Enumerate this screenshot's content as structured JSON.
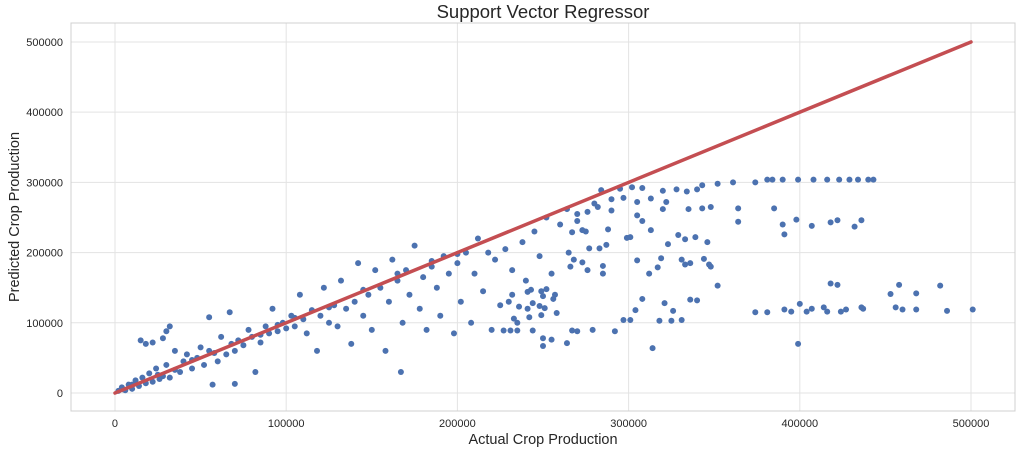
{
  "chart_data": {
    "type": "scatter",
    "title": "Support Vector Regressor",
    "xlabel": "Actual Crop Production",
    "ylabel": "Predicted Crop Production",
    "xlim": [
      -25700,
      525700
    ],
    "ylim": [
      -25600,
      527000
    ],
    "xticks": [
      0,
      100000,
      200000,
      300000,
      400000,
      500000
    ],
    "yticks": [
      0,
      100000,
      200000,
      300000,
      400000,
      500000
    ],
    "xtick_labels": [
      "0",
      "100000",
      "200000",
      "300000",
      "400000",
      "500000"
    ],
    "ytick_labels": [
      "0",
      "100000",
      "200000",
      "300000",
      "400000",
      "500000"
    ],
    "grid": true,
    "colors": {
      "points": "#4c72b0",
      "line": "#c44e52",
      "grid": "#e3e3e3",
      "frame": "#d0d0d0"
    },
    "reference_line": {
      "from": [
        0,
        0
      ],
      "to": [
        500000,
        500000
      ]
    },
    "points": [
      [
        2000,
        3000
      ],
      [
        4000,
        8000
      ],
      [
        6000,
        4000
      ],
      [
        8000,
        12000
      ],
      [
        10000,
        6000
      ],
      [
        12000,
        18000
      ],
      [
        14000,
        10000
      ],
      [
        16000,
        22000
      ],
      [
        18000,
        14000
      ],
      [
        20000,
        28000
      ],
      [
        22000,
        16000
      ],
      [
        24000,
        35000
      ],
      [
        26000,
        20000
      ],
      [
        28000,
        24000
      ],
      [
        30000,
        40000
      ],
      [
        32000,
        22000
      ],
      [
        15000,
        75000
      ],
      [
        18000,
        70000
      ],
      [
        22000,
        72000
      ],
      [
        28000,
        78000
      ],
      [
        30000,
        88000
      ],
      [
        32000,
        95000
      ],
      [
        35000,
        60000
      ],
      [
        38000,
        30000
      ],
      [
        40000,
        45000
      ],
      [
        42000,
        55000
      ],
      [
        45000,
        35000
      ],
      [
        48000,
        50000
      ],
      [
        50000,
        65000
      ],
      [
        52000,
        40000
      ],
      [
        55000,
        60000
      ],
      [
        55000,
        108000
      ],
      [
        57000,
        12000
      ],
      [
        60000,
        45000
      ],
      [
        62000,
        80000
      ],
      [
        65000,
        55000
      ],
      [
        67000,
        115000
      ],
      [
        70000,
        60000
      ],
      [
        70000,
        13000
      ],
      [
        72000,
        75000
      ],
      [
        75000,
        68000
      ],
      [
        78000,
        90000
      ],
      [
        80000,
        80000
      ],
      [
        82000,
        30000
      ],
      [
        85000,
        72000
      ],
      [
        88000,
        95000
      ],
      [
        90000,
        85000
      ],
      [
        92000,
        120000
      ],
      [
        95000,
        88000
      ],
      [
        98000,
        100000
      ],
      [
        100000,
        92000
      ],
      [
        103000,
        110000
      ],
      [
        105000,
        95000
      ],
      [
        108000,
        140000
      ],
      [
        110000,
        105000
      ],
      [
        112000,
        85000
      ],
      [
        115000,
        118000
      ],
      [
        118000,
        60000
      ],
      [
        120000,
        110000
      ],
      [
        122000,
        150000
      ],
      [
        125000,
        100000
      ],
      [
        128000,
        125000
      ],
      [
        130000,
        95000
      ],
      [
        132000,
        160000
      ],
      [
        135000,
        120000
      ],
      [
        138000,
        70000
      ],
      [
        140000,
        130000
      ],
      [
        142000,
        185000
      ],
      [
        145000,
        110000
      ],
      [
        148000,
        140000
      ],
      [
        150000,
        90000
      ],
      [
        152000,
        175000
      ],
      [
        155000,
        150000
      ],
      [
        158000,
        60000
      ],
      [
        160000,
        130000
      ],
      [
        162000,
        190000
      ],
      [
        165000,
        160000
      ],
      [
        167000,
        30000
      ],
      [
        168000,
        100000
      ],
      [
        170000,
        175000
      ],
      [
        172000,
        140000
      ],
      [
        175000,
        210000
      ],
      [
        178000,
        120000
      ],
      [
        180000,
        165000
      ],
      [
        182000,
        90000
      ],
      [
        185000,
        180000
      ],
      [
        188000,
        150000
      ],
      [
        190000,
        110000
      ],
      [
        192000,
        195000
      ],
      [
        195000,
        170000
      ],
      [
        198000,
        85000
      ],
      [
        200000,
        185000
      ],
      [
        202000,
        130000
      ],
      [
        205000,
        200000
      ],
      [
        208000,
        100000
      ],
      [
        210000,
        170000
      ],
      [
        212000,
        220000
      ],
      [
        215000,
        145000
      ],
      [
        218000,
        200000
      ],
      [
        220000,
        90000
      ],
      [
        222000,
        190000
      ],
      [
        225000,
        125000
      ],
      [
        228000,
        205000
      ],
      [
        232000,
        175000
      ],
      [
        235000,
        100000
      ],
      [
        238000,
        215000
      ],
      [
        240000,
        160000
      ],
      [
        245000,
        230000
      ],
      [
        248000,
        195000
      ],
      [
        252000,
        250000
      ],
      [
        255000,
        170000
      ],
      [
        260000,
        240000
      ],
      [
        265000,
        200000
      ],
      [
        270000,
        255000
      ],
      [
        275000,
        230000
      ],
      [
        280000,
        270000
      ],
      [
        290000,
        260000
      ],
      [
        5000,
        5000
      ],
      [
        10000,
        12000
      ],
      [
        25000,
        26000
      ],
      [
        35000,
        33000
      ],
      [
        45000,
        47000
      ],
      [
        58000,
        57000
      ],
      [
        68000,
        70000
      ],
      [
        85000,
        83000
      ],
      [
        95000,
        97000
      ],
      [
        105000,
        107000
      ],
      [
        125000,
        122000
      ],
      [
        145000,
        147000
      ],
      [
        165000,
        170000
      ],
      [
        185000,
        188000
      ],
      [
        200000,
        198000
      ],
      [
        381000,
        304000
      ],
      [
        384000,
        304000
      ],
      [
        390000,
        304000
      ],
      [
        399000,
        304000
      ],
      [
        408000,
        304000
      ],
      [
        416000,
        304000
      ],
      [
        423000,
        304000
      ],
      [
        429000,
        304000
      ],
      [
        434000,
        304000
      ],
      [
        440000,
        304000
      ],
      [
        443000,
        304000
      ],
      [
        361000,
        300000
      ],
      [
        374000,
        300000
      ],
      [
        352000,
        298000
      ],
      [
        364000,
        263000
      ],
      [
        385000,
        263000
      ],
      [
        364000,
        244000
      ],
      [
        398000,
        247000
      ],
      [
        390000,
        240000
      ],
      [
        407000,
        238000
      ],
      [
        418000,
        243000
      ],
      [
        422000,
        246000
      ],
      [
        432000,
        237000
      ],
      [
        436000,
        246000
      ],
      [
        391000,
        226000
      ],
      [
        418000,
        156000
      ],
      [
        422000,
        154000
      ],
      [
        458000,
        154000
      ],
      [
        482000,
        153000
      ],
      [
        453000,
        141000
      ],
      [
        468000,
        142000
      ],
      [
        374000,
        115000
      ],
      [
        381000,
        115000
      ],
      [
        391000,
        119000
      ],
      [
        395000,
        116000
      ],
      [
        400000,
        127000
      ],
      [
        404000,
        116000
      ],
      [
        407000,
        120000
      ],
      [
        414000,
        122000
      ],
      [
        416000,
        116000
      ],
      [
        424000,
        116000
      ],
      [
        427000,
        119000
      ],
      [
        436000,
        122000
      ],
      [
        437000,
        120000
      ],
      [
        456000,
        122000
      ],
      [
        460000,
        119000
      ],
      [
        468000,
        119000
      ],
      [
        486000,
        117000
      ],
      [
        501000,
        119000
      ],
      [
        399000,
        70000
      ],
      [
        314000,
        64000
      ],
      [
        352000,
        153000
      ],
      [
        344000,
        191000
      ],
      [
        347000,
        183000
      ],
      [
        348000,
        180000
      ],
      [
        331000,
        190000
      ],
      [
        333000,
        183000
      ],
      [
        336000,
        185000
      ],
      [
        319000,
        192000
      ],
      [
        317000,
        179000
      ],
      [
        312000,
        170000
      ],
      [
        305000,
        189000
      ],
      [
        308000,
        134000
      ],
      [
        304000,
        118000
      ],
      [
        301000,
        104000
      ],
      [
        297000,
        104000
      ],
      [
        318000,
        103000
      ],
      [
        325000,
        103000
      ],
      [
        331000,
        104000
      ],
      [
        326000,
        117000
      ],
      [
        321000,
        128000
      ],
      [
        336000,
        133000
      ],
      [
        340000,
        132000
      ],
      [
        292000,
        88000
      ],
      [
        279000,
        90000
      ],
      [
        270000,
        88000
      ],
      [
        267000,
        89000
      ],
      [
        264000,
        71000
      ],
      [
        255000,
        76000
      ],
      [
        250000,
        67000
      ],
      [
        250000,
        78000
      ],
      [
        244000,
        89000
      ],
      [
        235000,
        89000
      ],
      [
        231000,
        89000
      ],
      [
        227000,
        89000
      ],
      [
        258000,
        114000
      ],
      [
        249000,
        111000
      ],
      [
        242000,
        108000
      ],
      [
        233000,
        106000
      ],
      [
        251000,
        121000
      ],
      [
        248000,
        124000
      ],
      [
        244000,
        128000
      ],
      [
        241000,
        120000
      ],
      [
        236000,
        123000
      ],
      [
        230000,
        130000
      ],
      [
        256000,
        134000
      ],
      [
        257000,
        140000
      ],
      [
        250000,
        138000
      ],
      [
        241000,
        144000
      ],
      [
        243000,
        147000
      ],
      [
        249000,
        145000
      ],
      [
        252000,
        148000
      ],
      [
        232000,
        140000
      ],
      [
        276000,
        175000
      ],
      [
        266000,
        180000
      ],
      [
        273000,
        186000
      ],
      [
        285000,
        181000
      ],
      [
        285000,
        170000
      ],
      [
        268000,
        190000
      ],
      [
        284000,
        289000
      ],
      [
        295000,
        291000
      ],
      [
        302000,
        293000
      ],
      [
        308000,
        292000
      ],
      [
        320000,
        288000
      ],
      [
        328000,
        290000
      ],
      [
        334000,
        287000
      ],
      [
        340000,
        290000
      ],
      [
        343000,
        296000
      ],
      [
        290000,
        276000
      ],
      [
        297000,
        278000
      ],
      [
        305000,
        272000
      ],
      [
        313000,
        277000
      ],
      [
        322000,
        272000
      ],
      [
        305000,
        253000
      ],
      [
        308000,
        245000
      ],
      [
        313000,
        232000
      ],
      [
        323000,
        212000
      ],
      [
        329000,
        225000
      ],
      [
        333000,
        219000
      ],
      [
        339000,
        222000
      ],
      [
        346000,
        215000
      ],
      [
        335000,
        262000
      ],
      [
        343000,
        263000
      ],
      [
        348000,
        265000
      ],
      [
        320000,
        262000
      ],
      [
        299000,
        221000
      ],
      [
        301000,
        222000
      ],
      [
        288000,
        233000
      ],
      [
        287000,
        211000
      ],
      [
        283000,
        206000
      ],
      [
        277000,
        206000
      ],
      [
        273000,
        232000
      ],
      [
        267000,
        229000
      ],
      [
        270000,
        245000
      ],
      [
        276000,
        258000
      ],
      [
        282000,
        265000
      ],
      [
        264000,
        262000
      ]
    ]
  }
}
